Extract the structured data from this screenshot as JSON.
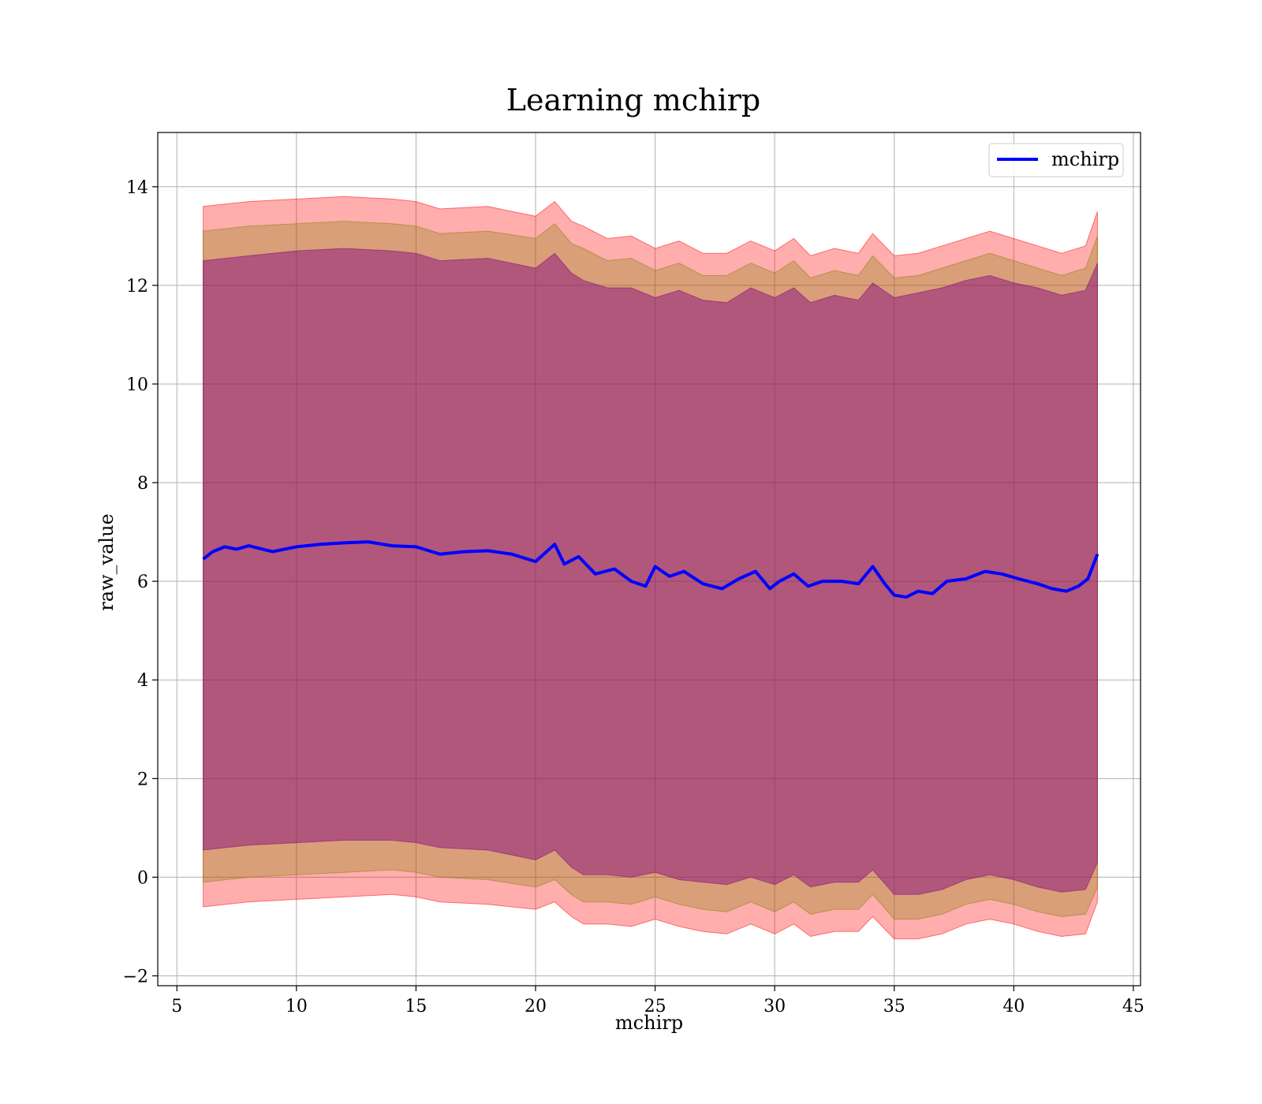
{
  "chart_data": {
    "type": "line",
    "title": "Learning mchirp",
    "xlabel": "mchirp",
    "ylabel": "raw_value",
    "xlim": [
      4.2,
      45.3
    ],
    "ylim": [
      -2.2,
      15.1
    ],
    "xticks": [
      5,
      10,
      15,
      20,
      25,
      30,
      35,
      40,
      45
    ],
    "yticks": [
      -2,
      0,
      2,
      4,
      6,
      8,
      10,
      12,
      14
    ],
    "ytick_labels": [
      "−2",
      "0",
      "2",
      "4",
      "6",
      "8",
      "10",
      "12",
      "14"
    ],
    "grid": true,
    "legend_position": "top-right",
    "colors": {
      "line": "#0000ff",
      "outer_band": "#ff0000",
      "middle_band": "#808000",
      "inner_band": "#800080",
      "grid": "#b0b0b0"
    },
    "series": [
      {
        "name": "mchirp",
        "x": [
          6.1,
          6.5,
          7.0,
          7.5,
          8.0,
          9.0,
          10.0,
          11.0,
          12.0,
          13.0,
          14.0,
          15.0,
          16.0,
          17.0,
          18.0,
          19.0,
          20.0,
          20.8,
          21.2,
          21.8,
          22.5,
          23.3,
          24.0,
          24.6,
          25.0,
          25.6,
          26.2,
          27.0,
          27.8,
          28.5,
          29.2,
          29.8,
          30.2,
          30.8,
          31.4,
          32.0,
          32.8,
          33.5,
          34.1,
          34.6,
          35.0,
          35.5,
          36.0,
          36.6,
          37.2,
          38.0,
          38.8,
          39.5,
          40.2,
          41.0,
          41.6,
          42.2,
          42.7,
          43.1,
          43.5
        ],
        "y": [
          6.45,
          6.6,
          6.7,
          6.65,
          6.72,
          6.6,
          6.7,
          6.75,
          6.78,
          6.8,
          6.72,
          6.7,
          6.55,
          6.6,
          6.62,
          6.55,
          6.4,
          6.75,
          6.35,
          6.5,
          6.15,
          6.25,
          6.0,
          5.9,
          6.3,
          6.1,
          6.2,
          5.95,
          5.85,
          6.05,
          6.2,
          5.85,
          6.0,
          6.15,
          5.9,
          6.0,
          6.0,
          5.95,
          6.3,
          5.95,
          5.72,
          5.68,
          5.8,
          5.75,
          6.0,
          6.05,
          6.2,
          6.15,
          6.05,
          5.95,
          5.85,
          5.8,
          5.9,
          6.05,
          6.55
        ]
      }
    ],
    "bands": [
      {
        "kind": "outer",
        "x": [
          6.1,
          8.0,
          10.0,
          12.0,
          14.0,
          15.0,
          16.0,
          18.0,
          20.0,
          20.8,
          21.5,
          22.0,
          23.0,
          24.0,
          25.0,
          26.0,
          27.0,
          28.0,
          29.0,
          30.0,
          30.8,
          31.5,
          32.5,
          33.5,
          34.1,
          35.0,
          36.0,
          37.0,
          38.0,
          39.0,
          40.0,
          41.0,
          42.0,
          43.0,
          43.5
        ],
        "lower": [
          -0.6,
          -0.5,
          -0.45,
          -0.4,
          -0.35,
          -0.4,
          -0.5,
          -0.55,
          -0.65,
          -0.5,
          -0.8,
          -0.95,
          -0.95,
          -1.0,
          -0.85,
          -1.0,
          -1.1,
          -1.15,
          -0.95,
          -1.15,
          -0.95,
          -1.2,
          -1.1,
          -1.1,
          -0.8,
          -1.25,
          -1.25,
          -1.15,
          -0.95,
          -0.85,
          -0.95,
          -1.1,
          -1.2,
          -1.15,
          -0.5
        ],
        "upper": [
          13.6,
          13.7,
          13.75,
          13.8,
          13.75,
          13.7,
          13.55,
          13.6,
          13.4,
          13.7,
          13.3,
          13.2,
          12.95,
          13.0,
          12.75,
          12.9,
          12.65,
          12.65,
          12.9,
          12.7,
          12.95,
          12.6,
          12.75,
          12.65,
          13.05,
          12.6,
          12.65,
          12.8,
          12.95,
          13.1,
          12.95,
          12.8,
          12.65,
          12.8,
          13.5
        ]
      },
      {
        "kind": "middle",
        "x": [
          6.1,
          8.0,
          10.0,
          12.0,
          14.0,
          15.0,
          16.0,
          18.0,
          20.0,
          20.8,
          21.5,
          22.0,
          23.0,
          24.0,
          25.0,
          26.0,
          27.0,
          28.0,
          29.0,
          30.0,
          30.8,
          31.5,
          32.5,
          33.5,
          34.1,
          35.0,
          36.0,
          37.0,
          38.0,
          39.0,
          40.0,
          41.0,
          42.0,
          43.0,
          43.5
        ],
        "lower": [
          -0.1,
          0.0,
          0.05,
          0.1,
          0.15,
          0.1,
          0.0,
          -0.05,
          -0.2,
          -0.05,
          -0.35,
          -0.5,
          -0.5,
          -0.55,
          -0.4,
          -0.55,
          -0.65,
          -0.7,
          -0.5,
          -0.7,
          -0.5,
          -0.75,
          -0.65,
          -0.65,
          -0.35,
          -0.85,
          -0.85,
          -0.75,
          -0.55,
          -0.45,
          -0.55,
          -0.7,
          -0.8,
          -0.75,
          -0.2
        ],
        "upper": [
          13.1,
          13.2,
          13.25,
          13.3,
          13.25,
          13.2,
          13.05,
          13.1,
          12.95,
          13.25,
          12.85,
          12.75,
          12.5,
          12.55,
          12.3,
          12.45,
          12.2,
          12.2,
          12.45,
          12.25,
          12.5,
          12.15,
          12.3,
          12.2,
          12.6,
          12.15,
          12.2,
          12.35,
          12.5,
          12.65,
          12.5,
          12.35,
          12.2,
          12.35,
          13.0
        ]
      },
      {
        "kind": "inner",
        "x": [
          6.1,
          8.0,
          10.0,
          12.0,
          14.0,
          15.0,
          16.0,
          18.0,
          20.0,
          20.8,
          21.5,
          22.0,
          23.0,
          24.0,
          25.0,
          26.0,
          27.0,
          28.0,
          29.0,
          30.0,
          30.8,
          31.5,
          32.5,
          33.5,
          34.1,
          35.0,
          36.0,
          37.0,
          38.0,
          39.0,
          40.0,
          41.0,
          42.0,
          43.0,
          43.5
        ],
        "lower": [
          0.55,
          0.65,
          0.7,
          0.75,
          0.75,
          0.7,
          0.6,
          0.55,
          0.35,
          0.55,
          0.2,
          0.05,
          0.05,
          0.0,
          0.1,
          -0.05,
          -0.1,
          -0.15,
          0.0,
          -0.15,
          0.05,
          -0.2,
          -0.1,
          -0.1,
          0.15,
          -0.35,
          -0.35,
          -0.25,
          -0.05,
          0.05,
          -0.05,
          -0.2,
          -0.3,
          -0.25,
          0.3
        ],
        "upper": [
          12.5,
          12.6,
          12.7,
          12.75,
          12.7,
          12.65,
          12.5,
          12.55,
          12.35,
          12.65,
          12.25,
          12.1,
          11.95,
          11.95,
          11.75,
          11.9,
          11.7,
          11.65,
          11.95,
          11.75,
          11.95,
          11.65,
          11.8,
          11.7,
          12.05,
          11.75,
          11.85,
          11.95,
          12.1,
          12.2,
          12.05,
          11.95,
          11.8,
          11.9,
          12.45
        ]
      }
    ]
  }
}
